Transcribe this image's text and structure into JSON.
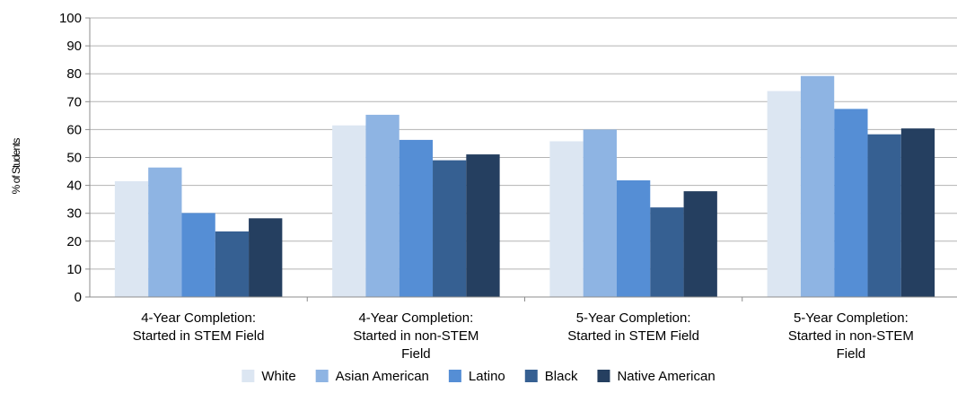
{
  "chart_data": {
    "type": "bar",
    "title": "",
    "xlabel": "",
    "ylabel": "% of Students",
    "ylim": [
      0,
      100
    ],
    "yticks": [
      0,
      10,
      20,
      30,
      40,
      50,
      60,
      70,
      80,
      90,
      100
    ],
    "grid": true,
    "legend_position": "bottom",
    "categories": [
      [
        "4-Year Completion:",
        "Started in STEM Field"
      ],
      [
        "4-Year Completion:",
        "Started in non-STEM",
        "Field"
      ],
      [
        "5-Year Completion:",
        "Started in STEM Field"
      ],
      [
        "5-Year Completion:",
        "Started in non-STEM",
        "Field"
      ]
    ],
    "series": [
      {
        "name": "White",
        "color": "#dce6f2",
        "values": [
          41.5,
          61.5,
          55.8,
          73.8
        ]
      },
      {
        "name": "Asian American",
        "color": "#8eb4e3",
        "values": [
          46.4,
          65.3,
          60.0,
          79.2
        ]
      },
      {
        "name": "Latino",
        "color": "#558ed5",
        "values": [
          30.1,
          56.3,
          41.8,
          67.4
        ]
      },
      {
        "name": "Black",
        "color": "#366092",
        "values": [
          23.5,
          49.0,
          32.1,
          58.3
        ]
      },
      {
        "name": "Native American",
        "color": "#253f60",
        "values": [
          28.2,
          51.1,
          37.9,
          60.4
        ]
      }
    ]
  }
}
